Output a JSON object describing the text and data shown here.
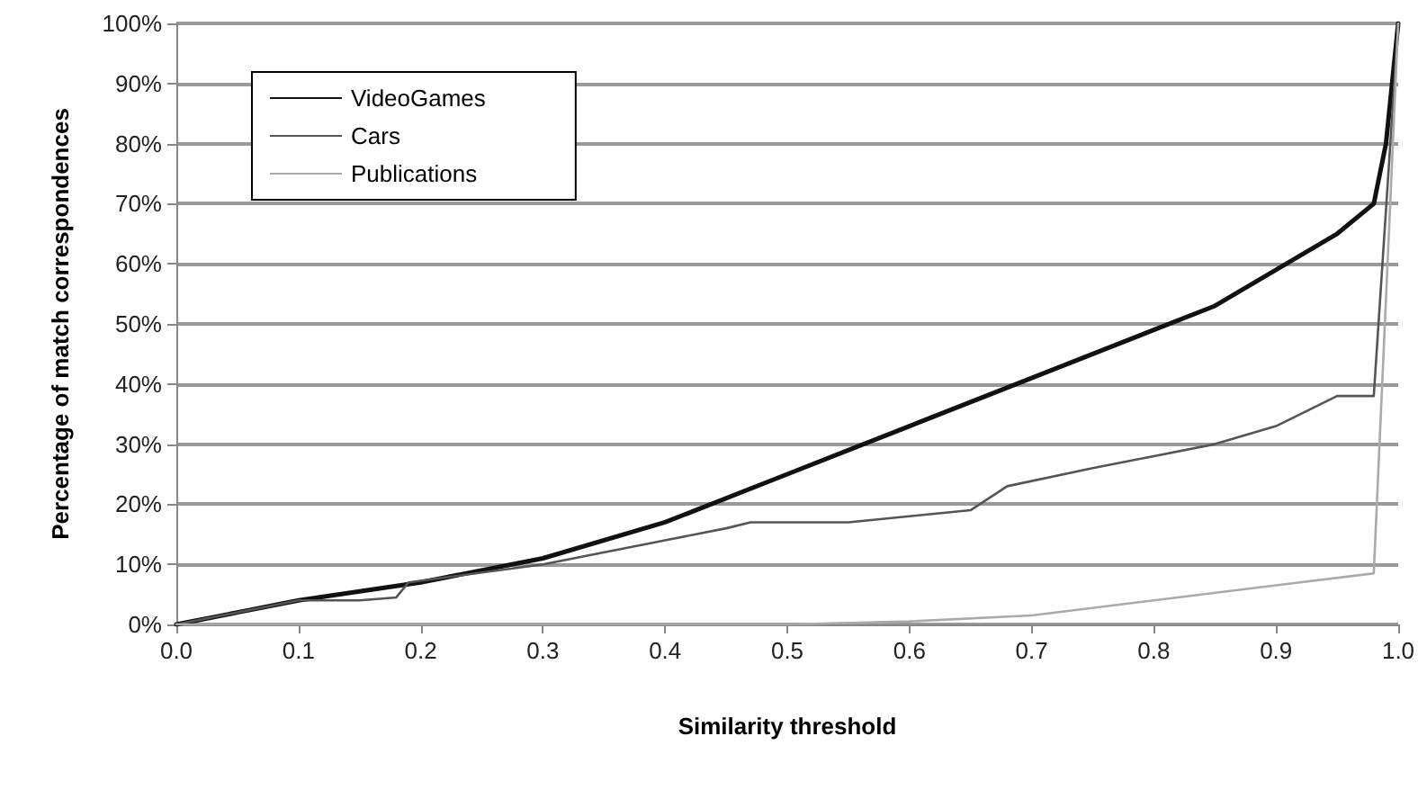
{
  "chart_data": {
    "type": "line",
    "xlabel": "Similarity threshold",
    "ylabel": "Percentage of match correspondences",
    "xlim": [
      0,
      1
    ],
    "ylim": [
      0,
      100
    ],
    "xticks": [
      {
        "value": 0,
        "label": "0.0"
      },
      {
        "value": 0.1,
        "label": "0.1"
      },
      {
        "value": 0.2,
        "label": "0.2"
      },
      {
        "value": 0.3,
        "label": "0.3"
      },
      {
        "value": 0.4,
        "label": "0.4"
      },
      {
        "value": 0.5,
        "label": "0.5"
      },
      {
        "value": 0.6,
        "label": "0.6"
      },
      {
        "value": 0.7,
        "label": "0.7"
      },
      {
        "value": 0.8,
        "label": "0.8"
      },
      {
        "value": 0.9,
        "label": "0.9"
      },
      {
        "value": 1,
        "label": "1.0"
      }
    ],
    "yticks": [
      {
        "value": 0,
        "label": "0%"
      },
      {
        "value": 10,
        "label": "10%"
      },
      {
        "value": 20,
        "label": "20%"
      },
      {
        "value": 30,
        "label": "30%"
      },
      {
        "value": 40,
        "label": "40%"
      },
      {
        "value": 50,
        "label": "50%"
      },
      {
        "value": 60,
        "label": "60%"
      },
      {
        "value": 70,
        "label": "70%"
      },
      {
        "value": 80,
        "label": "80%"
      },
      {
        "value": 90,
        "label": "90%"
      },
      {
        "value": 100,
        "label": "100%"
      }
    ],
    "grid": "y",
    "legend": "top left",
    "marker": "none",
    "line_style": "solid",
    "series": [
      {
        "name": "VideoGames",
        "color": "#111111",
        "x": [
          0,
          0.05,
          0.1,
          0.2,
          0.3,
          0.4,
          0.5,
          0.6,
          0.7,
          0.8,
          0.85,
          0.9,
          0.95,
          0.98,
          0.99,
          1
        ],
        "values": [
          0,
          2,
          4,
          7,
          11,
          17,
          25,
          33,
          41,
          49,
          53,
          59,
          65,
          70,
          80,
          100
        ]
      },
      {
        "name": "Cars",
        "color": "#555555",
        "x": [
          0,
          0.1,
          0.15,
          0.18,
          0.19,
          0.3,
          0.4,
          0.45,
          0.47,
          0.55,
          0.6,
          0.65,
          0.68,
          0.75,
          0.8,
          0.85,
          0.9,
          0.95,
          0.98,
          1
        ],
        "values": [
          0,
          4,
          4,
          4.5,
          7,
          10,
          14,
          16,
          17,
          17,
          18,
          19,
          23,
          26,
          28,
          30,
          33,
          38,
          38,
          100
        ]
      },
      {
        "name": "Publications",
        "color": "#aaaaaa",
        "x": [
          0,
          0.5,
          0.6,
          0.7,
          0.8,
          0.9,
          0.98,
          1
        ],
        "values": [
          0,
          0,
          0.5,
          1.5,
          4,
          6.5,
          8.5,
          100
        ]
      }
    ]
  }
}
